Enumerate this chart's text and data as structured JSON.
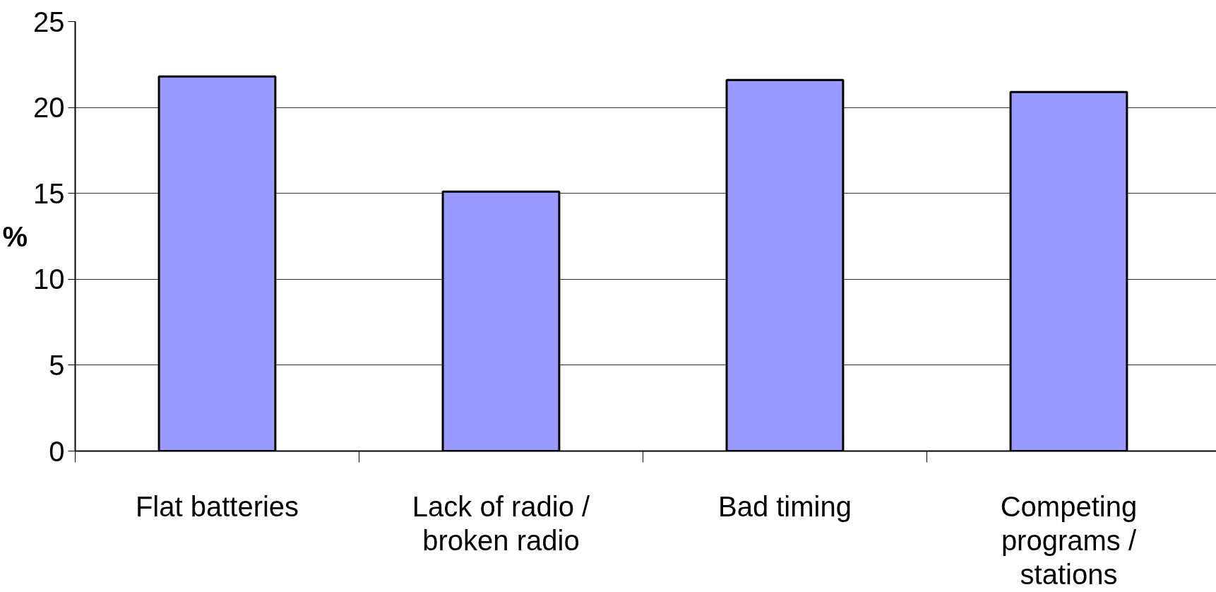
{
  "chart_data": {
    "type": "bar",
    "ylabel": "%",
    "categories": [
      "Flat batteries",
      "Lack of radio /\nbroken radio",
      "Bad timing",
      "Competing\nprograms /\nstations"
    ],
    "values": [
      21.8,
      15.1,
      21.6,
      20.9
    ],
    "color": "#9999ff",
    "ylim": [
      0,
      25
    ],
    "yticks": [
      0,
      5,
      10,
      15,
      20,
      25
    ],
    "grid": "y"
  }
}
